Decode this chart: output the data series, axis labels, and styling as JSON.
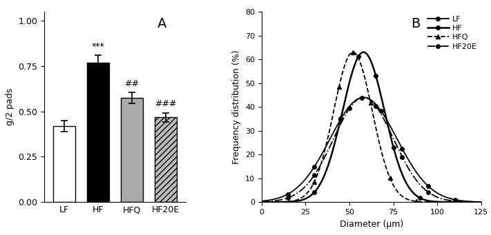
{
  "bar_labels": [
    "LF",
    "HF",
    "HFQ",
    "HF20E"
  ],
  "bar_values": [
    0.42,
    0.77,
    0.575,
    0.468
  ],
  "bar_errors": [
    0.03,
    0.04,
    0.03,
    0.025
  ],
  "bar_colors": [
    "white",
    "black",
    "#aaaaaa",
    "#bbbbbb"
  ],
  "bar_edge_colors": [
    "black",
    "black",
    "black",
    "black"
  ],
  "bar_hatches": [
    "",
    "",
    "",
    "////"
  ],
  "bar_annot": [
    "",
    "***",
    "##",
    "###"
  ],
  "ylabel_A": "g/2 pads",
  "ylim_A": [
    0.0,
    1.05
  ],
  "yticks_A": [
    0.0,
    0.25,
    0.5,
    0.75,
    1.0
  ],
  "panel_A_label": "A",
  "panel_B_label": "B",
  "xlabel_B": "Diameter (μm)",
  "ylabel_B": "Frequency distribution (%)",
  "xlim_B": [
    0,
    125
  ],
  "ylim_B": [
    0,
    80
  ],
  "yticks_B": [
    0,
    10,
    20,
    30,
    40,
    50,
    60,
    70,
    80
  ],
  "xticks_B": [
    0,
    25,
    50,
    75,
    100,
    125
  ],
  "curves": {
    "LF": {
      "mu": 58,
      "sigma": 19,
      "peak": 44
    },
    "HF": {
      "mu": 58,
      "sigma": 12,
      "peak": 63
    },
    "HFQ": {
      "mu": 52,
      "sigma": 11,
      "peak": 63
    },
    "HF20E": {
      "mu": 58,
      "sigma": 17,
      "peak": 44
    }
  },
  "curve_order": [
    "LF",
    "HF",
    "HFQ",
    "HF20E"
  ],
  "marker_x_LF": [
    15,
    30,
    45,
    57,
    68,
    80,
    95,
    110
  ],
  "marker_x_HF": [
    30,
    45,
    55,
    65,
    75,
    90,
    107
  ],
  "marker_x_HFQ": [
    30,
    44,
    52,
    62,
    73,
    88
  ],
  "marker_x_HF20E": [
    15,
    30,
    50,
    65,
    80,
    95,
    110
  ]
}
